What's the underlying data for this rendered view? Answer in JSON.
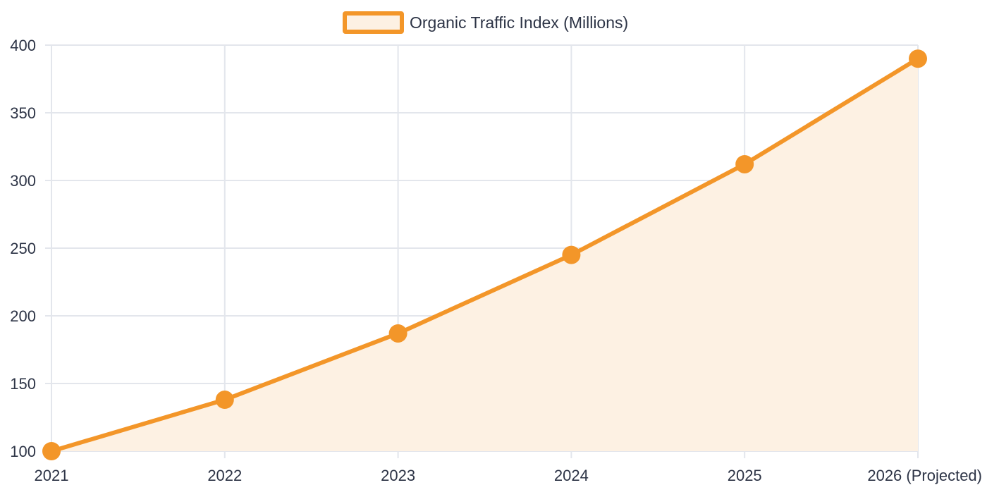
{
  "chart_data": {
    "type": "area",
    "categories": [
      "2021",
      "2022",
      "2023",
      "2024",
      "2025",
      "2026 (Projected)"
    ],
    "series": [
      {
        "name": "Organic Traffic Index (Millions)",
        "values": [
          100,
          138,
          187,
          245,
          312,
          390
        ]
      }
    ],
    "title": "",
    "xlabel": "",
    "ylabel": "",
    "ylim": [
      100,
      400
    ],
    "yticks": [
      "100",
      "150",
      "200",
      "250",
      "300",
      "350",
      "400"
    ],
    "grid": true,
    "legend_position": "top-center",
    "colors": {
      "line": "#f39629",
      "fill": "#fdf1e3",
      "grid": "#e3e6ec",
      "text": "#2d3446"
    }
  }
}
